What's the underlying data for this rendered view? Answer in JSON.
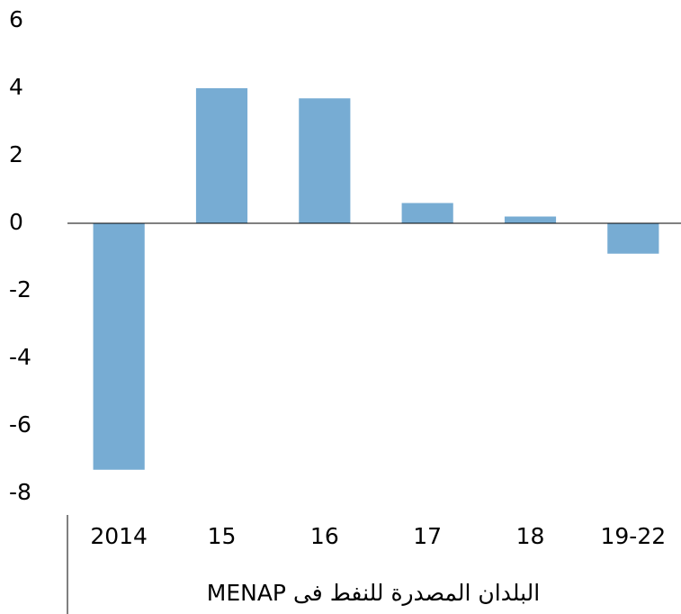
{
  "chart_data": {
    "type": "bar",
    "title": "البلدان المصدرة للنفط فى MENAP",
    "categories": [
      "2014",
      "15",
      "16",
      "17",
      "18",
      "19-22"
    ],
    "values": [
      -7.3,
      4.0,
      3.7,
      0.6,
      0.2,
      -0.9
    ],
    "color": "#77acd3",
    "ylim": [
      -8,
      6
    ],
    "yticks": [
      -8,
      -6,
      -4,
      -2,
      0,
      2,
      4,
      6
    ],
    "grid": false
  }
}
